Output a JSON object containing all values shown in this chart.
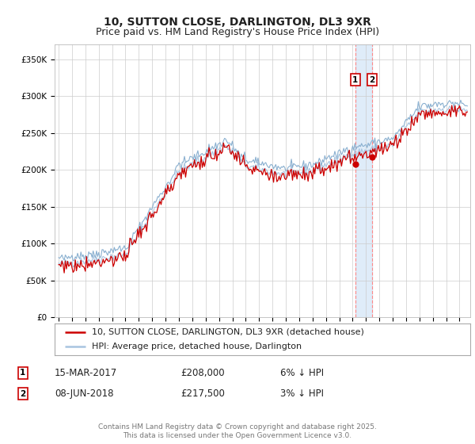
{
  "title_line1": "10, SUTTON CLOSE, DARLINGTON, DL3 9XR",
  "title_line2": "Price paid vs. HM Land Registry's House Price Index (HPI)",
  "ylabel_ticks": [
    "£0",
    "£50K",
    "£100K",
    "£150K",
    "£200K",
    "£250K",
    "£300K",
    "£350K"
  ],
  "ytick_values": [
    0,
    50000,
    100000,
    150000,
    200000,
    250000,
    300000,
    350000
  ],
  "ylim": [
    0,
    370000
  ],
  "xlim_start": 1994.7,
  "xlim_end": 2025.8,
  "hpi_color": "#a8c4e0",
  "hpi_color2": "#8ab0d0",
  "property_color": "#cc0000",
  "sale1_price": 208000,
  "sale1_price_label": "£208,000",
  "sale1_date_label": "15-MAR-2017",
  "sale1_hpi_diff": "6% ↓ HPI",
  "sale1_year": 2017.2,
  "sale2_price": 217500,
  "sale2_price_label": "£217,500",
  "sale2_date_label": "08-JUN-2018",
  "sale2_hpi_diff": "3% ↓ HPI",
  "sale2_year": 2018.44,
  "legend_property": "10, SUTTON CLOSE, DARLINGTON, DL3 9XR (detached house)",
  "legend_hpi": "HPI: Average price, detached house, Darlington",
  "footer": "Contains HM Land Registry data © Crown copyright and database right 2025.\nThis data is licensed under the Open Government Licence v3.0.",
  "background_color": "#ffffff",
  "grid_color": "#cccccc",
  "title_fontsize": 10,
  "subtitle_fontsize": 9,
  "tick_fontsize": 7.5,
  "legend_fontsize": 8,
  "table_fontsize": 8.5,
  "footer_fontsize": 6.5
}
